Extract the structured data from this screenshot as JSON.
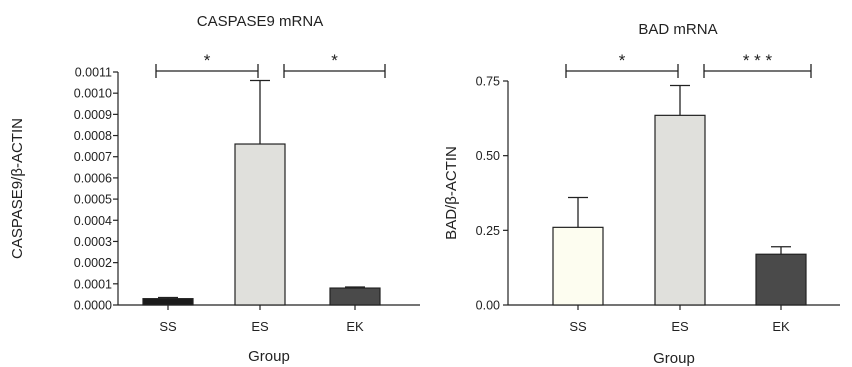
{
  "chart_data": [
    {
      "type": "bar",
      "title": "CASPASE9 mRNA",
      "xlabel": "Group",
      "ylabel": "CASPASE9/β-ACTIN",
      "categories": [
        "SS",
        "ES",
        "EK"
      ],
      "values": [
        3e-05,
        0.00076,
        8e-05
      ],
      "errors": [
        5e-06,
        0.0003,
        5e-06
      ],
      "bar_colors": [
        "#1a1a1a",
        "#e0e0dc",
        "#4a4a4a"
      ],
      "ylim": [
        0,
        0.0011
      ],
      "yticks": [
        "0.0000",
        "0.0001",
        "0.0002",
        "0.0003",
        "0.0004",
        "0.0005",
        "0.0006",
        "0.0007",
        "0.0008",
        "0.0009",
        "0.0010",
        "0.0011"
      ],
      "ytick_values": [
        0,
        0.0001,
        0.0002,
        0.0003,
        0.0004,
        0.0005,
        0.0006,
        0.0007,
        0.0008,
        0.0009,
        0.001,
        0.0011
      ],
      "significance": [
        {
          "from": "SS",
          "to": "ES",
          "label": "*"
        },
        {
          "from": "ES",
          "to": "EK",
          "label": "*"
        }
      ]
    },
    {
      "type": "bar",
      "title": "BAD mRNA",
      "xlabel": "Group",
      "ylabel": "BAD/β-ACTIN",
      "categories": [
        "SS",
        "ES",
        "EK"
      ],
      "values": [
        0.26,
        0.635,
        0.17
      ],
      "errors": [
        0.1,
        0.1,
        0.025
      ],
      "bar_colors": [
        "#fdfdf0",
        "#e0e0dc",
        "#4a4a4a"
      ],
      "ylim": [
        0,
        0.75
      ],
      "yticks": [
        "0.00",
        "0.25",
        "0.50",
        "0.75"
      ],
      "ytick_values": [
        0,
        0.25,
        0.5,
        0.75
      ],
      "significance": [
        {
          "from": "SS",
          "to": "ES",
          "label": "*"
        },
        {
          "from": "ES",
          "to": "EK",
          "label": "* * *"
        }
      ]
    }
  ]
}
